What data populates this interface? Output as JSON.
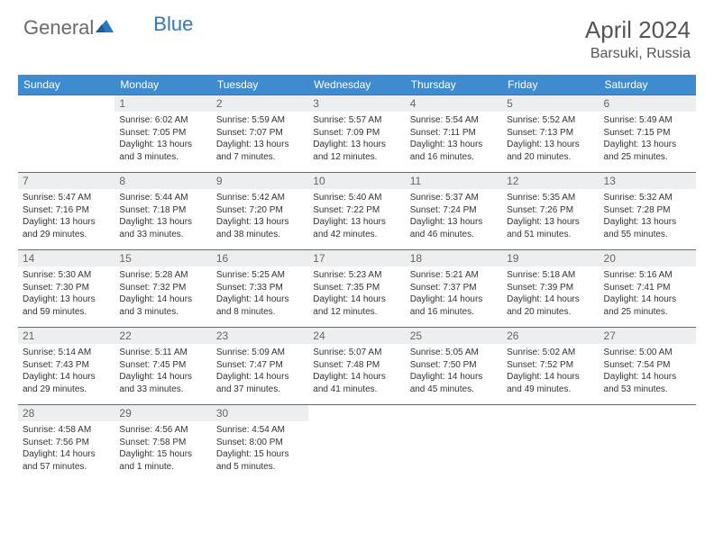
{
  "brand": {
    "part1": "General",
    "part2": "Blue"
  },
  "title": "April 2024",
  "location": "Barsuki, Russia",
  "colors": {
    "header_bg": "#3e8ccf",
    "row_border": "#2b7abf",
    "daynum_bg": "#eceeef",
    "text": "#333333",
    "muted": "#6b6b6b"
  },
  "weekdays": [
    "Sunday",
    "Monday",
    "Tuesday",
    "Wednesday",
    "Thursday",
    "Friday",
    "Saturday"
  ],
  "weeks": [
    [
      {
        "blank": true
      },
      {
        "n": "1",
        "sr": "6:02 AM",
        "ss": "7:05 PM",
        "dl": "13 hours and 3 minutes."
      },
      {
        "n": "2",
        "sr": "5:59 AM",
        "ss": "7:07 PM",
        "dl": "13 hours and 7 minutes."
      },
      {
        "n": "3",
        "sr": "5:57 AM",
        "ss": "7:09 PM",
        "dl": "13 hours and 12 minutes."
      },
      {
        "n": "4",
        "sr": "5:54 AM",
        "ss": "7:11 PM",
        "dl": "13 hours and 16 minutes."
      },
      {
        "n": "5",
        "sr": "5:52 AM",
        "ss": "7:13 PM",
        "dl": "13 hours and 20 minutes."
      },
      {
        "n": "6",
        "sr": "5:49 AM",
        "ss": "7:15 PM",
        "dl": "13 hours and 25 minutes."
      }
    ],
    [
      {
        "n": "7",
        "sr": "5:47 AM",
        "ss": "7:16 PM",
        "dl": "13 hours and 29 minutes."
      },
      {
        "n": "8",
        "sr": "5:44 AM",
        "ss": "7:18 PM",
        "dl": "13 hours and 33 minutes."
      },
      {
        "n": "9",
        "sr": "5:42 AM",
        "ss": "7:20 PM",
        "dl": "13 hours and 38 minutes."
      },
      {
        "n": "10",
        "sr": "5:40 AM",
        "ss": "7:22 PM",
        "dl": "13 hours and 42 minutes."
      },
      {
        "n": "11",
        "sr": "5:37 AM",
        "ss": "7:24 PM",
        "dl": "13 hours and 46 minutes."
      },
      {
        "n": "12",
        "sr": "5:35 AM",
        "ss": "7:26 PM",
        "dl": "13 hours and 51 minutes."
      },
      {
        "n": "13",
        "sr": "5:32 AM",
        "ss": "7:28 PM",
        "dl": "13 hours and 55 minutes."
      }
    ],
    [
      {
        "n": "14",
        "sr": "5:30 AM",
        "ss": "7:30 PM",
        "dl": "13 hours and 59 minutes."
      },
      {
        "n": "15",
        "sr": "5:28 AM",
        "ss": "7:32 PM",
        "dl": "14 hours and 3 minutes."
      },
      {
        "n": "16",
        "sr": "5:25 AM",
        "ss": "7:33 PM",
        "dl": "14 hours and 8 minutes."
      },
      {
        "n": "17",
        "sr": "5:23 AM",
        "ss": "7:35 PM",
        "dl": "14 hours and 12 minutes."
      },
      {
        "n": "18",
        "sr": "5:21 AM",
        "ss": "7:37 PM",
        "dl": "14 hours and 16 minutes."
      },
      {
        "n": "19",
        "sr": "5:18 AM",
        "ss": "7:39 PM",
        "dl": "14 hours and 20 minutes."
      },
      {
        "n": "20",
        "sr": "5:16 AM",
        "ss": "7:41 PM",
        "dl": "14 hours and 25 minutes."
      }
    ],
    [
      {
        "n": "21",
        "sr": "5:14 AM",
        "ss": "7:43 PM",
        "dl": "14 hours and 29 minutes."
      },
      {
        "n": "22",
        "sr": "5:11 AM",
        "ss": "7:45 PM",
        "dl": "14 hours and 33 minutes."
      },
      {
        "n": "23",
        "sr": "5:09 AM",
        "ss": "7:47 PM",
        "dl": "14 hours and 37 minutes."
      },
      {
        "n": "24",
        "sr": "5:07 AM",
        "ss": "7:48 PM",
        "dl": "14 hours and 41 minutes."
      },
      {
        "n": "25",
        "sr": "5:05 AM",
        "ss": "7:50 PM",
        "dl": "14 hours and 45 minutes."
      },
      {
        "n": "26",
        "sr": "5:02 AM",
        "ss": "7:52 PM",
        "dl": "14 hours and 49 minutes."
      },
      {
        "n": "27",
        "sr": "5:00 AM",
        "ss": "7:54 PM",
        "dl": "14 hours and 53 minutes."
      }
    ],
    [
      {
        "n": "28",
        "sr": "4:58 AM",
        "ss": "7:56 PM",
        "dl": "14 hours and 57 minutes."
      },
      {
        "n": "29",
        "sr": "4:56 AM",
        "ss": "7:58 PM",
        "dl": "15 hours and 1 minute."
      },
      {
        "n": "30",
        "sr": "4:54 AM",
        "ss": "8:00 PM",
        "dl": "15 hours and 5 minutes."
      },
      {
        "blank": true
      },
      {
        "blank": true
      },
      {
        "blank": true
      },
      {
        "blank": true
      }
    ]
  ],
  "labels": {
    "sunrise": "Sunrise:",
    "sunset": "Sunset:",
    "daylight": "Daylight:"
  }
}
